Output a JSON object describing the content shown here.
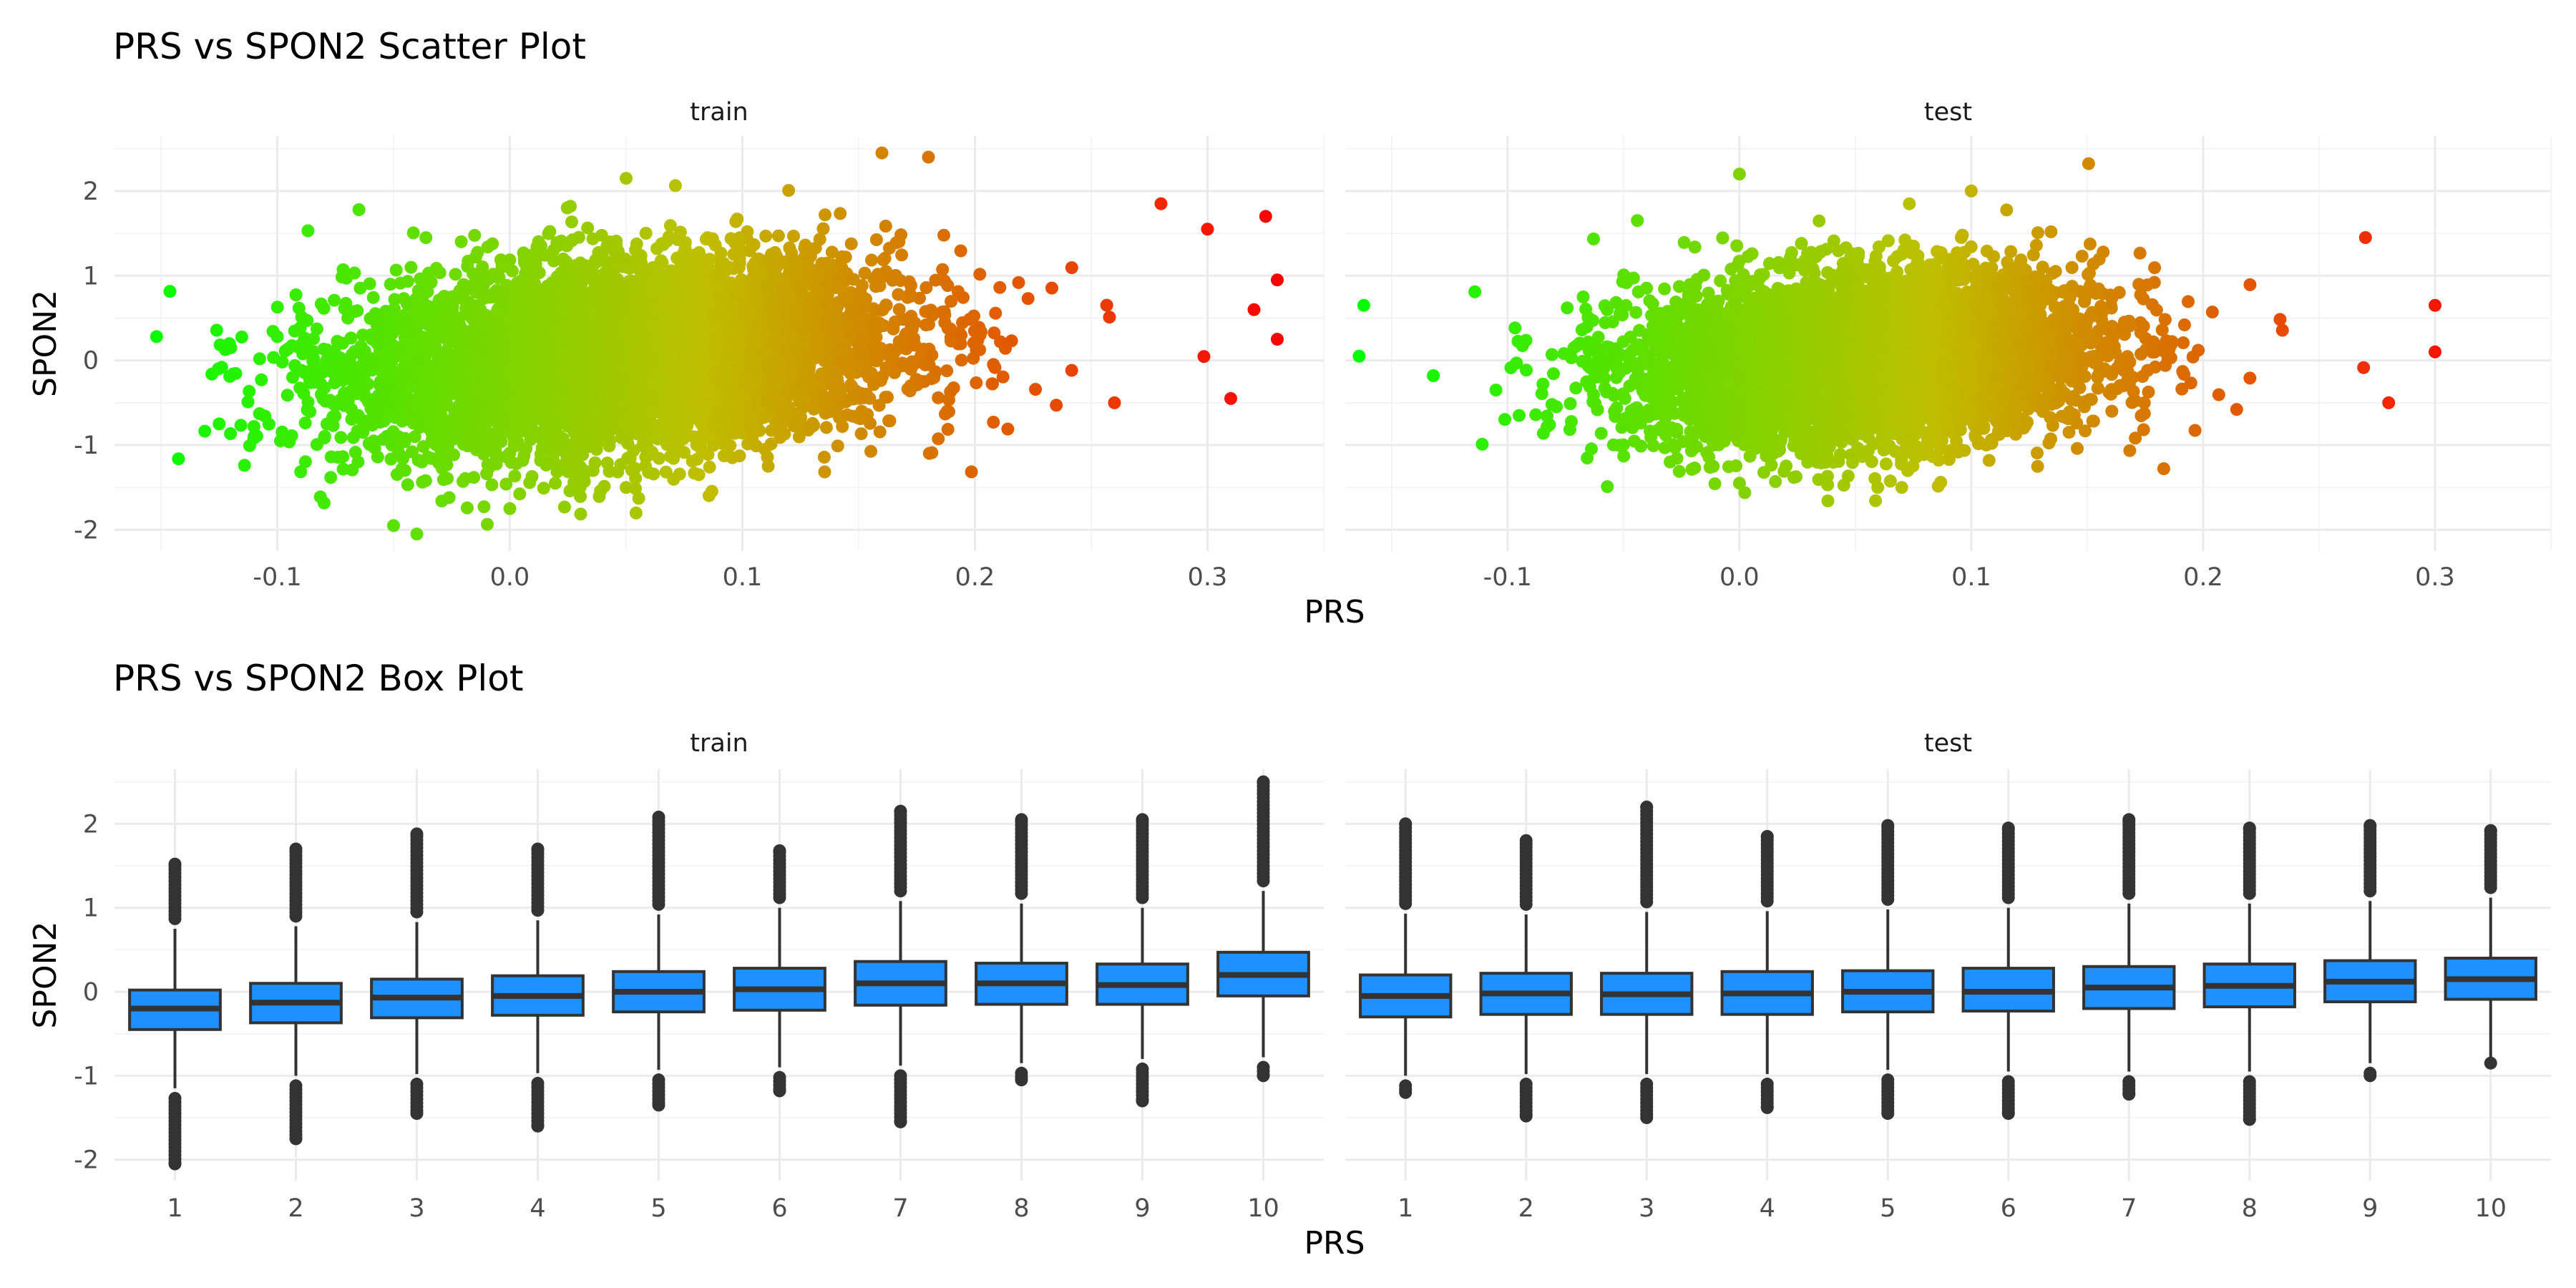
{
  "chart_data": [
    {
      "type": "scatter",
      "title": "PRS vs SPON2 Scatter Plot",
      "xlabel": "PRS",
      "ylabel": "SPON2",
      "xlim": [
        -0.17,
        0.35
      ],
      "ylim": [
        -2.25,
        2.65
      ],
      "x_ticks": [
        -0.1,
        0.0,
        0.1,
        0.2,
        0.3
      ],
      "x_tick_labels": [
        "-0.1",
        "0.0",
        "0.1",
        "0.2",
        "0.3"
      ],
      "y_ticks": [
        -2,
        -1,
        0,
        1,
        2
      ],
      "y_tick_labels": [
        "-2",
        "-1",
        "0",
        "1",
        "2"
      ],
      "grid": true,
      "color_scale": {
        "low": "#00ff00",
        "mid": "#bfbf00",
        "high": "#ff0000",
        "x_range": [
          -0.165,
          0.33
        ]
      },
      "panels": [
        {
          "label": "train",
          "trend": {
            "slope": 2.0,
            "intercept": -0.05
          },
          "spread": {
            "x_center": 0.05,
            "x_sd": 0.058,
            "y_sd": 0.55
          },
          "highlighted_points": [
            [
              -0.125,
              -0.75
            ],
            [
              -0.12,
              0.15
            ],
            [
              -0.11,
              -0.9
            ],
            [
              -0.1,
              0.28
            ],
            [
              -0.05,
              -1.95
            ],
            [
              -0.04,
              -2.05
            ],
            [
              0.0,
              -1.75
            ],
            [
              0.05,
              -1.5
            ],
            [
              0.05,
              2.15
            ],
            [
              0.16,
              2.45
            ],
            [
              0.18,
              2.4
            ],
            [
              0.26,
              -0.5
            ],
            [
              0.28,
              1.85
            ],
            [
              0.3,
              1.55
            ],
            [
              0.31,
              -0.45
            ],
            [
              0.32,
              0.6
            ],
            [
              0.325,
              1.7
            ],
            [
              0.33,
              0.95
            ],
            [
              0.33,
              0.25
            ]
          ]
        },
        {
          "label": "test",
          "trend": {
            "slope": 1.6,
            "intercept": -0.06
          },
          "spread": {
            "x_center": 0.055,
            "x_sd": 0.05,
            "y_sd": 0.5
          },
          "highlighted_points": [
            [
              -0.162,
              0.65
            ],
            [
              -0.164,
              0.05
            ],
            [
              -0.132,
              -0.18
            ],
            [
              -0.105,
              -0.35
            ],
            [
              -0.095,
              -0.65
            ],
            [
              0.0,
              2.2
            ],
            [
              0.0,
              -1.45
            ],
            [
              0.07,
              -1.5
            ],
            [
              0.1,
              2.0
            ],
            [
              0.27,
              1.45
            ],
            [
              0.28,
              -0.5
            ],
            [
              0.3,
              0.65
            ],
            [
              0.3,
              0.1
            ]
          ]
        }
      ]
    },
    {
      "type": "box",
      "title": "PRS vs SPON2 Box Plot",
      "xlabel": "PRS",
      "ylabel": "SPON2",
      "categories": [
        "1",
        "2",
        "3",
        "4",
        "5",
        "6",
        "7",
        "8",
        "9",
        "10"
      ],
      "ylim": [
        -2.25,
        2.65
      ],
      "y_ticks": [
        -2,
        -1,
        0,
        1,
        2
      ],
      "y_tick_labels": [
        "-2",
        "-1",
        "0",
        "1",
        "2"
      ],
      "grid": true,
      "box_fill": "#1e90ff",
      "box_stroke": "#333333",
      "panels": [
        {
          "label": "train",
          "boxes": [
            {
              "q1": -0.45,
              "median": -0.2,
              "q3": 0.02,
              "whisker_low": -1.15,
              "whisker_high": 0.75,
              "outlier_low": -2.05,
              "outlier_high": 1.52
            },
            {
              "q1": -0.37,
              "median": -0.13,
              "q3": 0.1,
              "whisker_low": -1.0,
              "whisker_high": 0.78,
              "outlier_low": -1.75,
              "outlier_high": 1.7
            },
            {
              "q1": -0.31,
              "median": -0.07,
              "q3": 0.15,
              "whisker_low": -0.98,
              "whisker_high": 0.83,
              "outlier_low": -1.45,
              "outlier_high": 1.88
            },
            {
              "q1": -0.28,
              "median": -0.05,
              "q3": 0.19,
              "whisker_low": -0.97,
              "whisker_high": 0.85,
              "outlier_low": -1.6,
              "outlier_high": 1.7
            },
            {
              "q1": -0.24,
              "median": 0.0,
              "q3": 0.24,
              "whisker_low": -0.93,
              "whisker_high": 0.92,
              "outlier_low": -1.35,
              "outlier_high": 2.08
            },
            {
              "q1": -0.22,
              "median": 0.03,
              "q3": 0.28,
              "whisker_low": -0.9,
              "whisker_high": 1.0,
              "outlier_low": -1.18,
              "outlier_high": 1.68
            },
            {
              "q1": -0.16,
              "median": 0.1,
              "q3": 0.36,
              "whisker_low": -0.88,
              "whisker_high": 1.08,
              "outlier_low": -1.55,
              "outlier_high": 2.15
            },
            {
              "q1": -0.15,
              "median": 0.1,
              "q3": 0.34,
              "whisker_low": -0.85,
              "whisker_high": 1.05,
              "outlier_low": -1.05,
              "outlier_high": 2.05
            },
            {
              "q1": -0.15,
              "median": 0.08,
              "q3": 0.33,
              "whisker_low": -0.8,
              "whisker_high": 1.0,
              "outlier_low": -1.3,
              "outlier_high": 2.05
            },
            {
              "q1": -0.05,
              "median": 0.2,
              "q3": 0.47,
              "whisker_low": -0.78,
              "whisker_high": 1.2,
              "outlier_low": -1.0,
              "outlier_high": 2.5
            }
          ]
        },
        {
          "label": "test",
          "boxes": [
            {
              "q1": -0.3,
              "median": -0.05,
              "q3": 0.2,
              "whisker_low": -1.0,
              "whisker_high": 0.93,
              "outlier_low": -1.2,
              "outlier_high": 2.0
            },
            {
              "q1": -0.27,
              "median": -0.02,
              "q3": 0.22,
              "whisker_low": -0.98,
              "whisker_high": 0.92,
              "outlier_low": -1.48,
              "outlier_high": 1.8
            },
            {
              "q1": -0.27,
              "median": -0.03,
              "q3": 0.22,
              "whisker_low": -0.98,
              "whisker_high": 0.95,
              "outlier_low": -1.5,
              "outlier_high": 2.2
            },
            {
              "q1": -0.27,
              "median": -0.02,
              "q3": 0.24,
              "whisker_low": -0.98,
              "whisker_high": 0.96,
              "outlier_low": -1.38,
              "outlier_high": 1.85
            },
            {
              "q1": -0.24,
              "median": 0.0,
              "q3": 0.25,
              "whisker_low": -0.93,
              "whisker_high": 0.98,
              "outlier_low": -1.45,
              "outlier_high": 1.98
            },
            {
              "q1": -0.23,
              "median": 0.0,
              "q3": 0.28,
              "whisker_low": -0.95,
              "whisker_high": 1.0,
              "outlier_low": -1.45,
              "outlier_high": 1.95
            },
            {
              "q1": -0.2,
              "median": 0.05,
              "q3": 0.3,
              "whisker_low": -0.95,
              "whisker_high": 1.05,
              "outlier_low": -1.22,
              "outlier_high": 2.05
            },
            {
              "q1": -0.18,
              "median": 0.07,
              "q3": 0.33,
              "whisker_low": -0.95,
              "whisker_high": 1.05,
              "outlier_low": -1.52,
              "outlier_high": 1.95
            },
            {
              "q1": -0.12,
              "median": 0.12,
              "q3": 0.37,
              "whisker_low": -0.85,
              "whisker_high": 1.08,
              "outlier_low": -1.0,
              "outlier_high": 1.98
            },
            {
              "q1": -0.09,
              "median": 0.15,
              "q3": 0.4,
              "whisker_low": -0.78,
              "whisker_high": 1.12,
              "outlier_low": -0.85,
              "outlier_high": 1.92
            }
          ]
        }
      ]
    }
  ]
}
